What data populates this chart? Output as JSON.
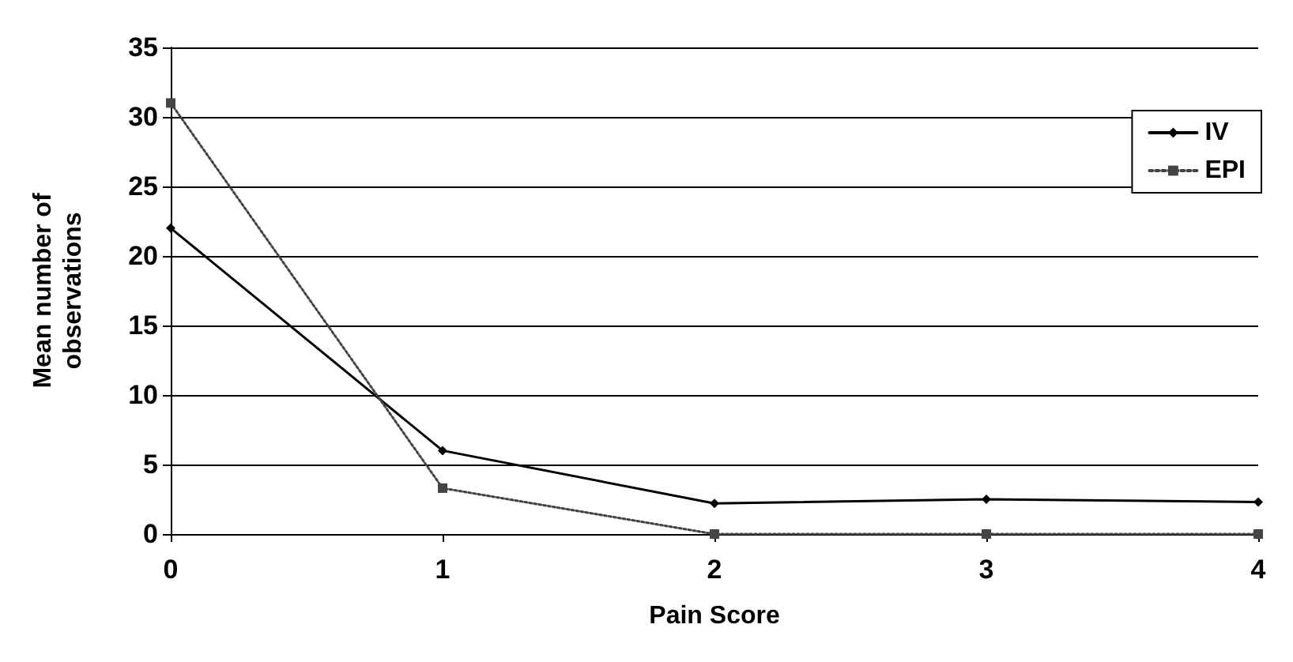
{
  "chart_data": {
    "type": "line",
    "xlabel": "Pain Score",
    "ylabel": "Mean number of\nobservations",
    "categories": [
      "0",
      "1",
      "2",
      "3",
      "4"
    ],
    "series": [
      {
        "name": "IV",
        "color": "#000000",
        "values": [
          22,
          6,
          2.2,
          2.5,
          2.3
        ],
        "marker": "diamond",
        "line_style": "solid"
      },
      {
        "name": "EPI",
        "color": "#444444",
        "values": [
          31,
          3.3,
          0,
          0,
          0
        ],
        "marker": "square",
        "line_style": "dotted"
      }
    ],
    "ylim": [
      0,
      35
    ],
    "yticks": [
      0,
      5,
      10,
      15,
      20,
      25,
      30,
      35
    ],
    "grid": "y",
    "legend": "top right"
  }
}
